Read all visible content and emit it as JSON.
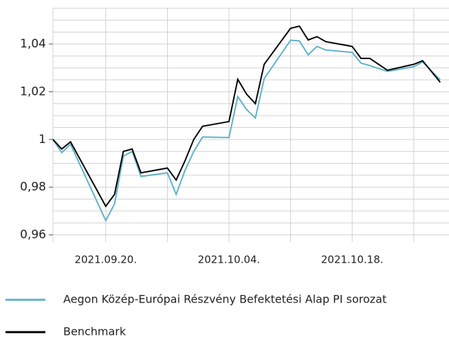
{
  "chart_data": {
    "type": "line",
    "x": [
      "2021.09.14.",
      "2021.09.15.",
      "2021.09.16.",
      "2021.09.20.",
      "2021.09.21.",
      "2021.09.22.",
      "2021.09.23.",
      "2021.09.24.",
      "2021.09.27.",
      "2021.09.28.",
      "2021.09.29.",
      "2021.09.30.",
      "2021.10.01.",
      "2021.10.04.",
      "2021.10.05.",
      "2021.10.06.",
      "2021.10.07.",
      "2021.10.08.",
      "2021.10.11.",
      "2021.10.12.",
      "2021.10.13.",
      "2021.10.14.",
      "2021.10.15.",
      "2021.10.18.",
      "2021.10.19.",
      "2021.10.20.",
      "2021.10.22.",
      "2021.10.25.",
      "2021.10.26.",
      "2021.10.28."
    ],
    "series": [
      {
        "name": "Aegon Közép-Európai Részvény Befektetési Alap PI sorozat",
        "color": "#5db2c5",
        "values": [
          1.0,
          0.9945,
          0.998,
          0.966,
          0.973,
          0.993,
          0.995,
          0.9845,
          0.986,
          0.977,
          0.987,
          0.995,
          1.001,
          1.0008,
          1.018,
          1.0125,
          1.009,
          1.0255,
          1.0416,
          1.0413,
          1.0355,
          1.039,
          1.0375,
          1.0365,
          1.032,
          1.031,
          1.0285,
          1.0305,
          1.0325,
          1.025
        ]
      },
      {
        "name": "Benchmark",
        "color": "#000000",
        "values": [
          1.0,
          0.996,
          0.999,
          0.972,
          0.977,
          0.995,
          0.996,
          0.986,
          0.988,
          0.983,
          0.991,
          1.0,
          1.0055,
          1.0075,
          1.0252,
          1.019,
          1.015,
          1.0315,
          1.0466,
          1.0475,
          1.0417,
          1.0431,
          1.041,
          1.039,
          1.034,
          1.034,
          1.029,
          1.0315,
          1.033,
          1.024
        ]
      }
    ],
    "xlim": [
      "2021.09.14.",
      "2021.10.29."
    ],
    "xticks": [
      "2021.09.20.",
      "2021.10.04.",
      "2021.10.18."
    ],
    "xgrid": [
      "2021.09.20.",
      "2021.09.27.",
      "2021.10.04.",
      "2021.10.11.",
      "2021.10.18.",
      "2021.10.25."
    ],
    "ylim": [
      0.957,
      1.055
    ],
    "yticks": [
      {
        "value": 0.96,
        "label": "0,96"
      },
      {
        "value": 0.98,
        "label": "0,98"
      },
      1,
      {
        "value": 1.02,
        "label": "1,02"
      },
      {
        "value": 1.04,
        "label": "1,04"
      }
    ],
    "yminor": [
      0.965,
      0.97,
      0.975,
      0.985,
      0.99,
      0.995,
      1.005,
      1.01,
      1.015,
      1.025,
      1.03,
      1.035,
      1.045,
      1.05
    ],
    "grid": true
  }
}
